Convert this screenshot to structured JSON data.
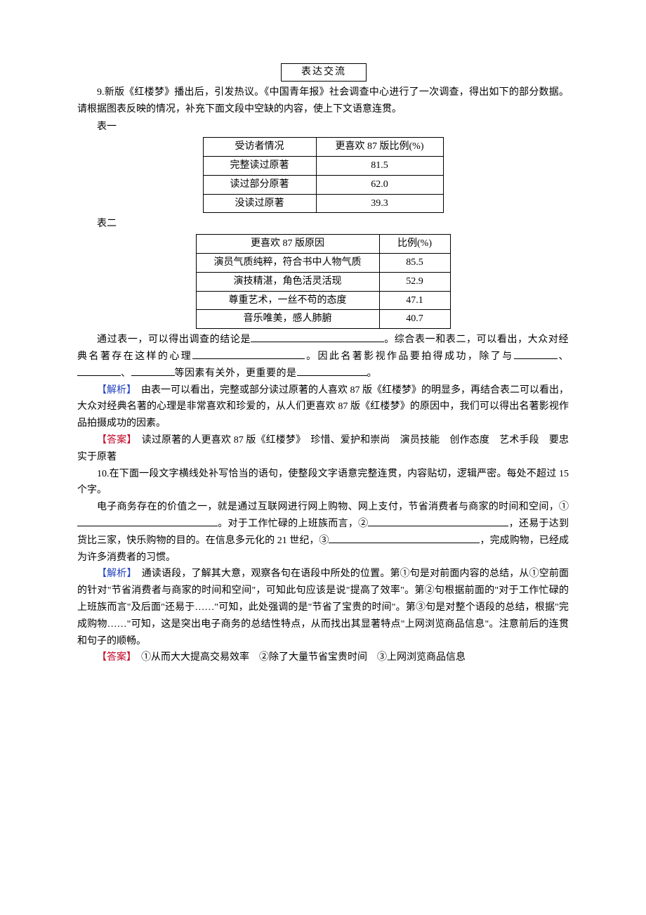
{
  "section_title": "表达交流",
  "q9": {
    "number": "9.",
    "intro": "新版《红楼梦》播出后，引发热议。《中国青年报》社会调查中心进行了一次调查，得出如下的部分数据。请根据图表反映的情况，补充下面文段中空缺的内容，使上下文语意连贯。",
    "table1_label": "表一",
    "table1": {
      "headers": [
        "受访者情况",
        "更喜欢 87 版比例(%)"
      ],
      "rows": [
        [
          "完整读过原著",
          "81.5"
        ],
        [
          "读过部分原著",
          "62.0"
        ],
        [
          "没读过原著",
          "39.3"
        ]
      ]
    },
    "table2_label": "表二",
    "table2": {
      "headers": [
        "更喜欢 87 版原因",
        "比例(%)"
      ],
      "rows": [
        [
          "演员气质纯粹，符合书中人物气质",
          "85.5"
        ],
        [
          "演技精湛，角色活灵活现",
          "52.9"
        ],
        [
          "尊重艺术，一丝不苟的态度",
          "47.1"
        ],
        [
          "音乐唯美，感人肺腑",
          "40.7"
        ]
      ]
    },
    "fill": {
      "p1a": "通过表一，可以得出调查的结论是",
      "p1b": "。综合表一和表二，可以看出，大众对经典名著存在这样的心理",
      "p1c": "。因此名著影视作品要拍得成功，除了与",
      "sep1": "、",
      "sep2": "、",
      "p1d": "等因素有关外，更重要的是",
      "p1e": "。"
    },
    "analysis_label": "【解析】",
    "analysis": "　由表一可以看出，完整或部分读过原著的人喜欢 87 版《红楼梦》的明显多，再结合表二可以看出，大众对经典名著的心理是非常喜欢和珍爱的，从人们更喜欢 87 版《红楼梦》的原因中，我们可以得出名著影视作品拍摄成功的因素。",
    "answer_label": "【答案】",
    "answer": "　读过原著的人更喜欢 87 版《红楼梦》　珍惜、爱护和崇尚　演员技能　创作态度　艺术手段　要忠实于原著"
  },
  "q10": {
    "number": "10.",
    "intro": "在下面一段文字横线处补写恰当的语句，使整段文字语意完整连贯，内容贴切，逻辑严密。每处不超过 15 个字。",
    "body": {
      "a": "电子商务存在的价值之一，就是通过互联网进行网上购物、网上支付，节省消费者与商家的时间和空间，①",
      "b": "。对于工作忙碌的上班族而言，②",
      "c": "，还易于达到货比三家，快乐购物的目的。在信息多元化的 21 世纪，③",
      "d": "，完成购物，已经成为许多消费者的习惯。"
    },
    "analysis_label": "【解析】",
    "analysis": "　通读语段，了解其大意，观察各句在语段中所处的位置。第①句是对前面内容的总结，从①空前面的针对\"节省消费者与商家的时间和空间\"，可知此句应该是说\"提高了效率\"。第②句根据前面的\"对于工作忙碌的上班族而言\"及后面\"还易于……\"可知，此处强调的是\"节省了宝贵的时间\"。第③句是对整个语段的总结，根据\"完成购物……\"可知，这是突出电子商务的总结性特点，从而找出其显著特点\"上网浏览商品信息\"。注意前后的连贯和句子的顺畅。",
    "answer_label": "【答案】",
    "answer": "　①从而大大提高交易效率　②除了大量节省宝贵时间　③上网浏览商品信息"
  }
}
